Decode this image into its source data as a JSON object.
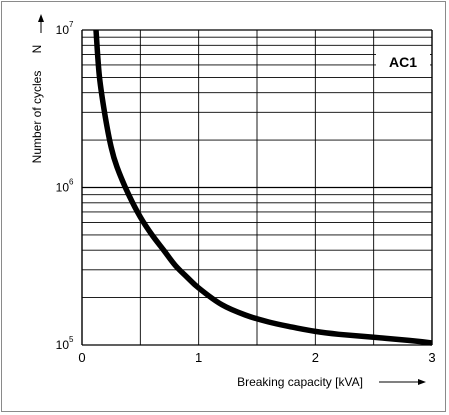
{
  "chart_data": {
    "type": "line",
    "xlabel": "Breaking capacity [kVA]",
    "ylabel": "Number of cycles",
    "y_axis_symbol": "N",
    "legend_label": "AC1",
    "legend_placement": "top-right",
    "y_scale": "log",
    "x_range": [
      0,
      3
    ],
    "y_range": [
      100000,
      10000000
    ],
    "grid": true,
    "x_ticks": [
      "0",
      "1",
      "2",
      "3"
    ],
    "y_ticks": [
      {
        "base": "10",
        "exp": "5"
      },
      {
        "base": "10",
        "exp": "6"
      },
      {
        "base": "10",
        "exp": "7"
      }
    ],
    "series": [
      {
        "x": [
          0.12,
          0.15,
          0.2,
          0.25,
          0.3,
          0.4,
          0.5,
          0.6,
          0.7,
          0.8,
          0.9,
          1.0,
          1.2,
          1.4,
          1.6,
          1.8,
          2.0,
          2.2,
          2.5,
          2.8,
          3.0
        ],
        "y": [
          10000000,
          5000000,
          2800000,
          1800000,
          1350000,
          900000,
          650000,
          500000,
          400000,
          320000,
          270000,
          230000,
          180000,
          155000,
          140000,
          130000,
          122000,
          117000,
          112000,
          107000,
          103000
        ]
      }
    ],
    "colors": {
      "line": "#000000",
      "grid": "#000000"
    }
  }
}
